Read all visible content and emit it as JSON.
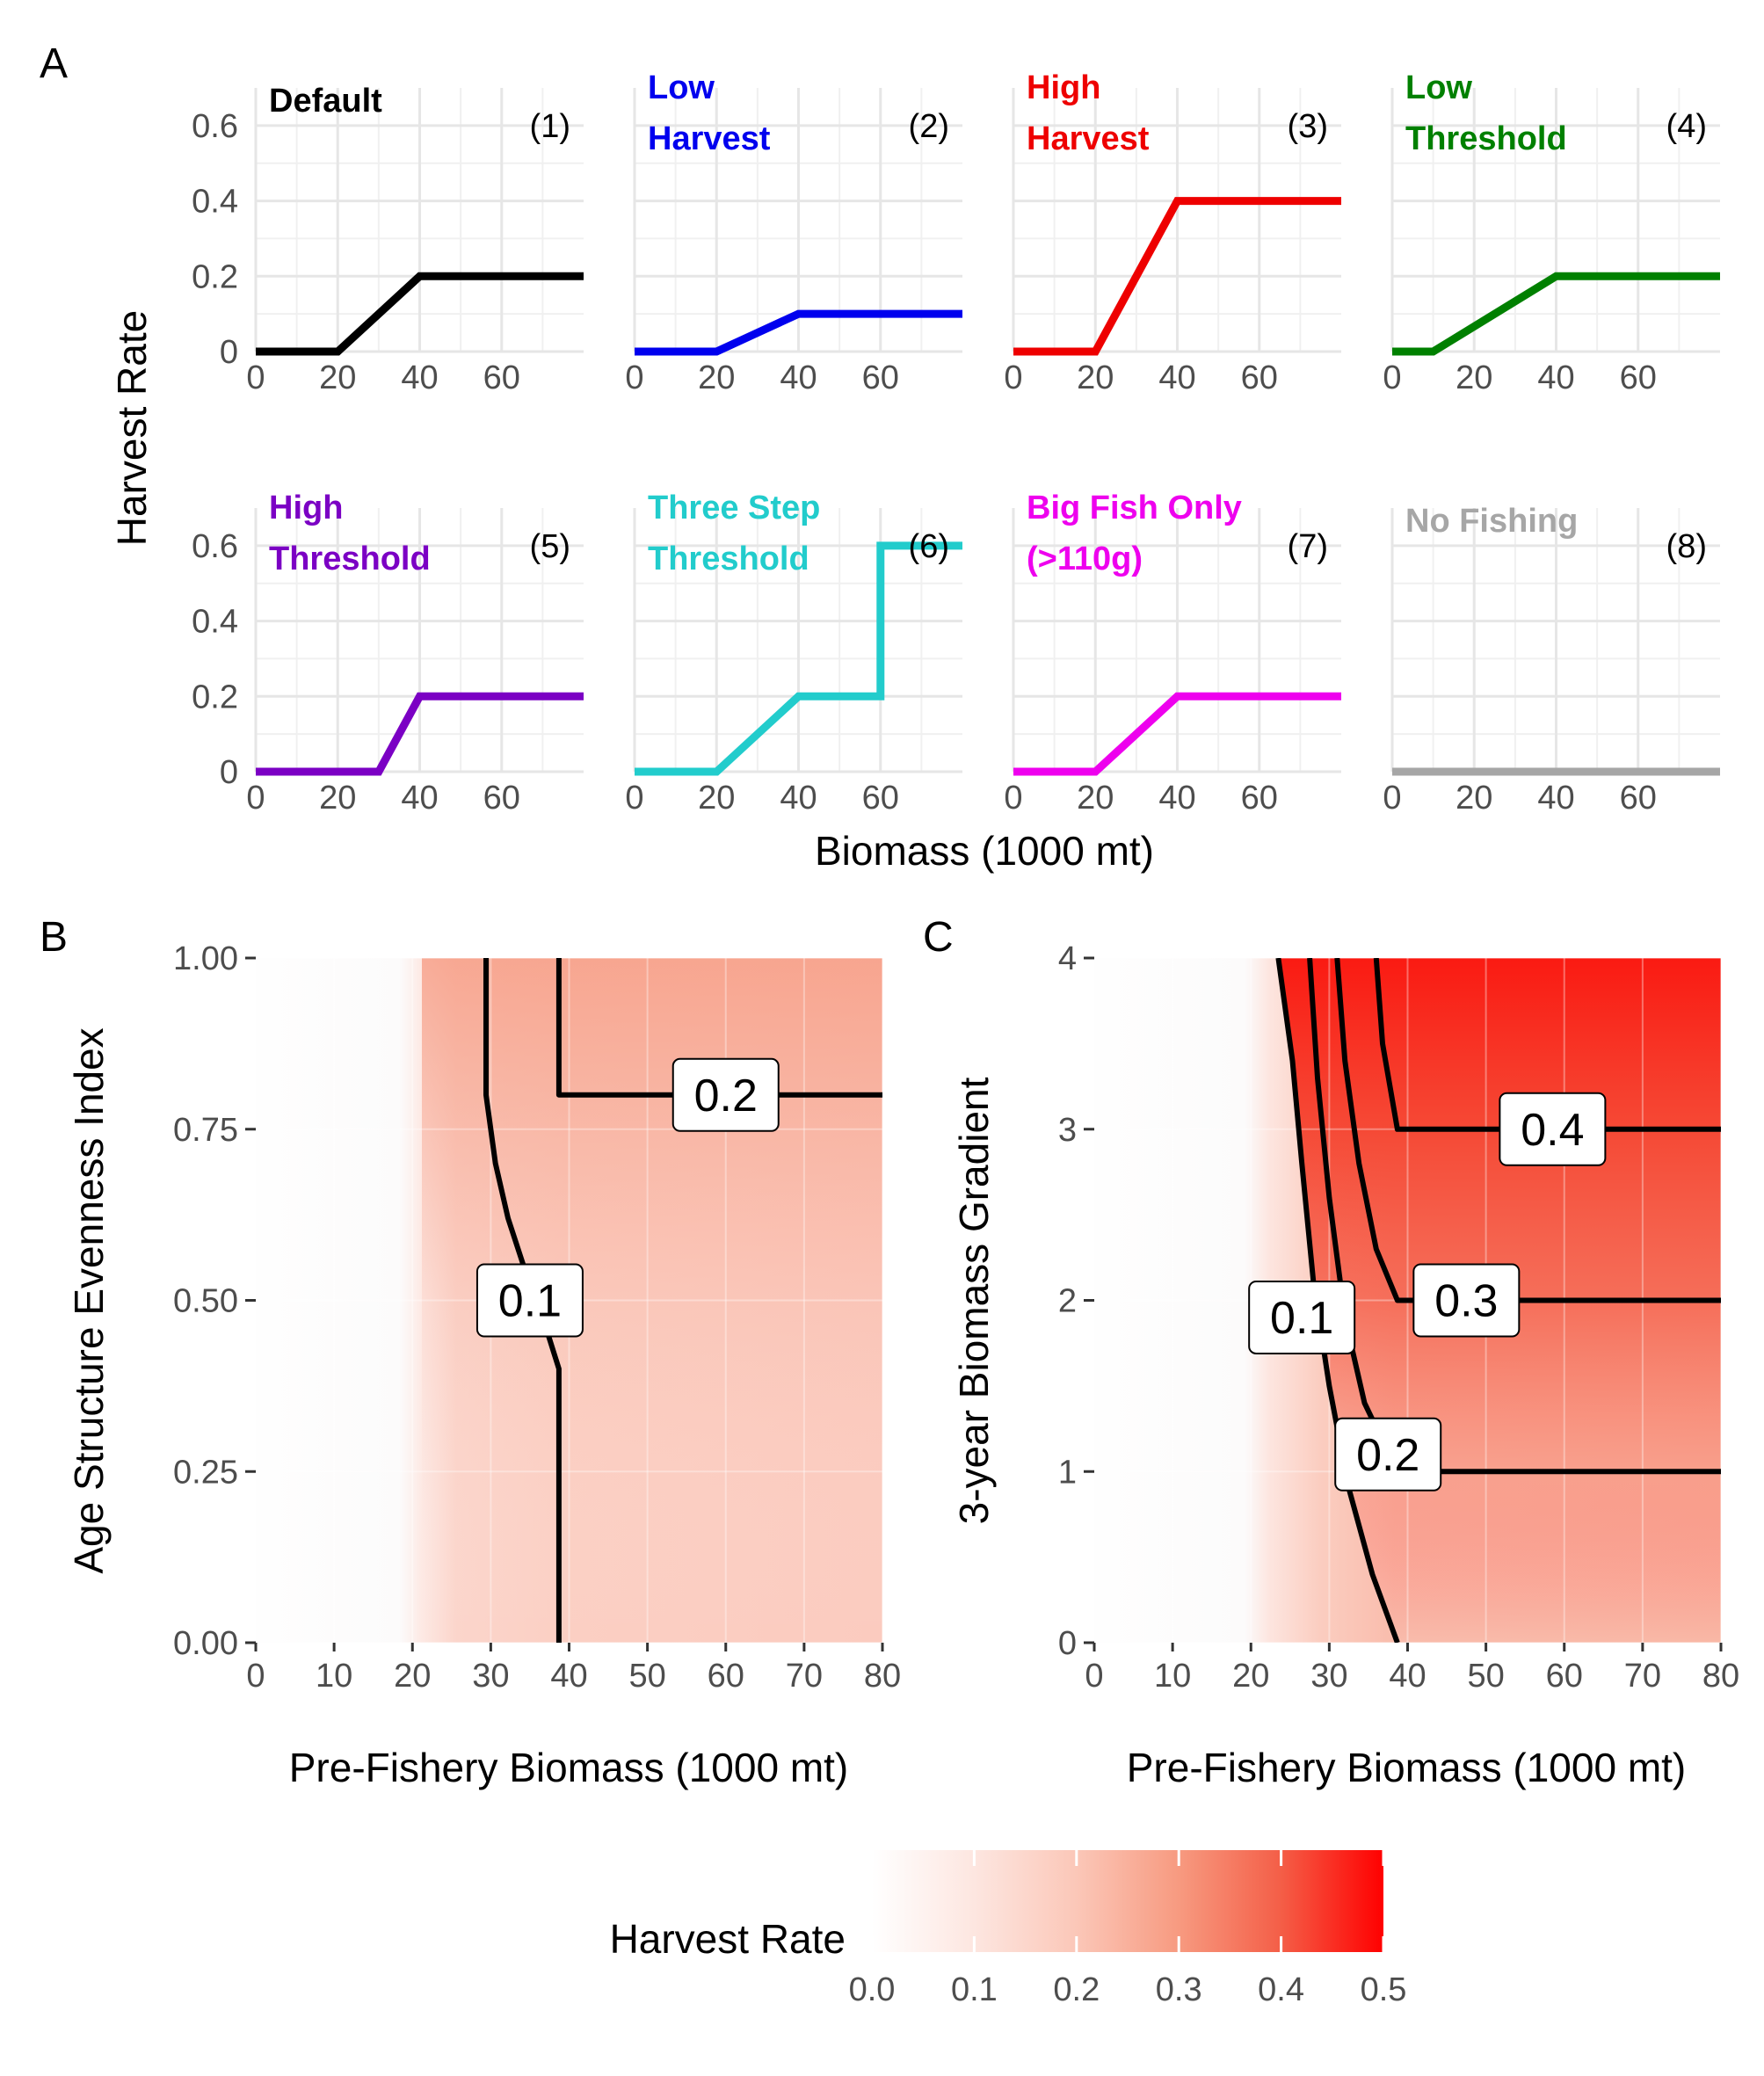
{
  "panel_letters": {
    "a": "A",
    "b": "B",
    "c": "C"
  },
  "chart_data": [
    {
      "type": "line",
      "panel": "A",
      "xlabel": "Biomass (1000 mt)",
      "ylabel": "Harvest Rate",
      "xlim": [
        0,
        80
      ],
      "ylim": [
        0,
        0.7
      ],
      "x_ticks": [
        "0",
        "20",
        "40",
        "60"
      ],
      "y_ticks": [
        "0",
        "0.2",
        "0.4",
        "0.6"
      ],
      "grid": true,
      "strategies": [
        {
          "id": "(1)",
          "label_lines": [
            "Default"
          ],
          "color": "#000000",
          "points": [
            [
              0,
              0
            ],
            [
              20,
              0
            ],
            [
              40,
              0.2
            ],
            [
              80,
              0.2
            ]
          ]
        },
        {
          "id": "(2)",
          "label_lines": [
            "Low",
            "Harvest"
          ],
          "color": "#0000ee",
          "points": [
            [
              0,
              0
            ],
            [
              20,
              0
            ],
            [
              40,
              0.1
            ],
            [
              80,
              0.1
            ]
          ]
        },
        {
          "id": "(3)",
          "label_lines": [
            "High",
            "Harvest"
          ],
          "color": "#ee0000",
          "points": [
            [
              0,
              0
            ],
            [
              20,
              0
            ],
            [
              40,
              0.4
            ],
            [
              80,
              0.4
            ]
          ]
        },
        {
          "id": "(4)",
          "label_lines": [
            "Low",
            "Threshold"
          ],
          "color": "#008000",
          "points": [
            [
              0,
              0
            ],
            [
              10,
              0
            ],
            [
              40,
              0.2
            ],
            [
              80,
              0.2
            ]
          ]
        },
        {
          "id": "(5)",
          "label_lines": [
            "High",
            "Threshold"
          ],
          "color": "#7b00c4",
          "points": [
            [
              0,
              0
            ],
            [
              30,
              0
            ],
            [
              40,
              0.2
            ],
            [
              80,
              0.2
            ]
          ]
        },
        {
          "id": "(6)",
          "label_lines": [
            "Three Step",
            "Threshold"
          ],
          "color": "#22cccc",
          "points": [
            [
              0,
              0
            ],
            [
              20,
              0
            ],
            [
              40,
              0.2
            ],
            [
              60,
              0.2
            ],
            [
              60,
              0.6
            ],
            [
              80,
              0.6
            ]
          ]
        },
        {
          "id": "(7)",
          "label_lines": [
            "Big Fish Only",
            "(>110g)"
          ],
          "color": "#ee00ee",
          "points": [
            [
              0,
              0
            ],
            [
              20,
              0
            ],
            [
              40,
              0.2
            ],
            [
              80,
              0.2
            ]
          ]
        },
        {
          "id": "(8)",
          "label_lines": [
            "No Fishing"
          ],
          "color": "#a6a6a6",
          "points": [
            [
              0,
              0
            ],
            [
              80,
              0
            ]
          ]
        }
      ]
    },
    {
      "type": "heatmap",
      "panel": "B",
      "xlabel": "Pre-Fishery Biomass (1000 mt)",
      "ylabel": "Age Structure Evenness Index",
      "xlim": [
        0,
        80
      ],
      "ylim": [
        0,
        1
      ],
      "x_ticks": [
        "0",
        "10",
        "20",
        "30",
        "40",
        "50",
        "60",
        "70",
        "80"
      ],
      "y_ticks": [
        "0.00",
        "0.25",
        "0.50",
        "0.75",
        "1.00"
      ],
      "contours": [
        {
          "level": "0.1",
          "points": [
            [
              38.7,
              0
            ],
            [
              38.7,
              0.4
            ],
            [
              36.5,
              0.48
            ],
            [
              34.2,
              0.55
            ],
            [
              32.2,
              0.62
            ],
            [
              30.6,
              0.7
            ],
            [
              29.4,
              0.8
            ],
            [
              29.4,
              1.0
            ]
          ],
          "label_at": [
            35,
            0.5
          ]
        },
        {
          "level": "0.2",
          "points": [
            [
              38.7,
              1.0
            ],
            [
              38.7,
              0.8
            ],
            [
              80,
              0.8
            ]
          ],
          "label_at": [
            60,
            0.8
          ]
        }
      ]
    },
    {
      "type": "heatmap",
      "panel": "C",
      "xlabel": "Pre-Fishery Biomass (1000 mt)",
      "ylabel": "3-year Biomass Gradient",
      "xlim": [
        0,
        80
      ],
      "ylim": [
        0,
        4
      ],
      "x_ticks": [
        "0",
        "10",
        "20",
        "30",
        "40",
        "50",
        "60",
        "70",
        "80"
      ],
      "y_ticks": [
        "0",
        "1",
        "2",
        "3",
        "4"
      ],
      "contours": [
        {
          "level": "0.1",
          "points": [
            [
              38.7,
              0
            ],
            [
              35.5,
              0.4
            ],
            [
              32.5,
              0.9
            ],
            [
              30,
              1.5
            ],
            [
              28,
              2.1
            ],
            [
              26.5,
              2.8
            ],
            [
              25.3,
              3.4
            ],
            [
              23.5,
              4.0
            ]
          ],
          "label_at": [
            26.5,
            1.9
          ]
        },
        {
          "level": "0.2",
          "points": [
            [
              27.5,
              4.0
            ],
            [
              28.5,
              3.3
            ],
            [
              30,
              2.6
            ],
            [
              32,
              1.9
            ],
            [
              34.5,
              1.4
            ],
            [
              38.7,
              1.0
            ],
            [
              80,
              1.0
            ]
          ],
          "label_at": [
            37.5,
            1.1
          ]
        },
        {
          "level": "0.3",
          "points": [
            [
              31,
              4.0
            ],
            [
              32,
              3.4
            ],
            [
              33.8,
              2.8
            ],
            [
              36,
              2.3
            ],
            [
              38.7,
              2.0
            ],
            [
              80,
              2.0
            ]
          ],
          "label_at": [
            47.5,
            2.0
          ]
        },
        {
          "level": "0.4",
          "points": [
            [
              36,
              4.0
            ],
            [
              36.8,
              3.5
            ],
            [
              38.7,
              3.0
            ],
            [
              80,
              3.0
            ]
          ],
          "label_at": [
            58.5,
            3.0
          ]
        }
      ]
    },
    {
      "type": "colorbar",
      "panel": "legend",
      "title": "Harvest Rate",
      "range": [
        0,
        0.5
      ],
      "ticks": [
        "0.0",
        "0.1",
        "0.2",
        "0.3",
        "0.4",
        "0.5"
      ],
      "colors": [
        "#ffffff",
        "#ff0000"
      ]
    }
  ]
}
